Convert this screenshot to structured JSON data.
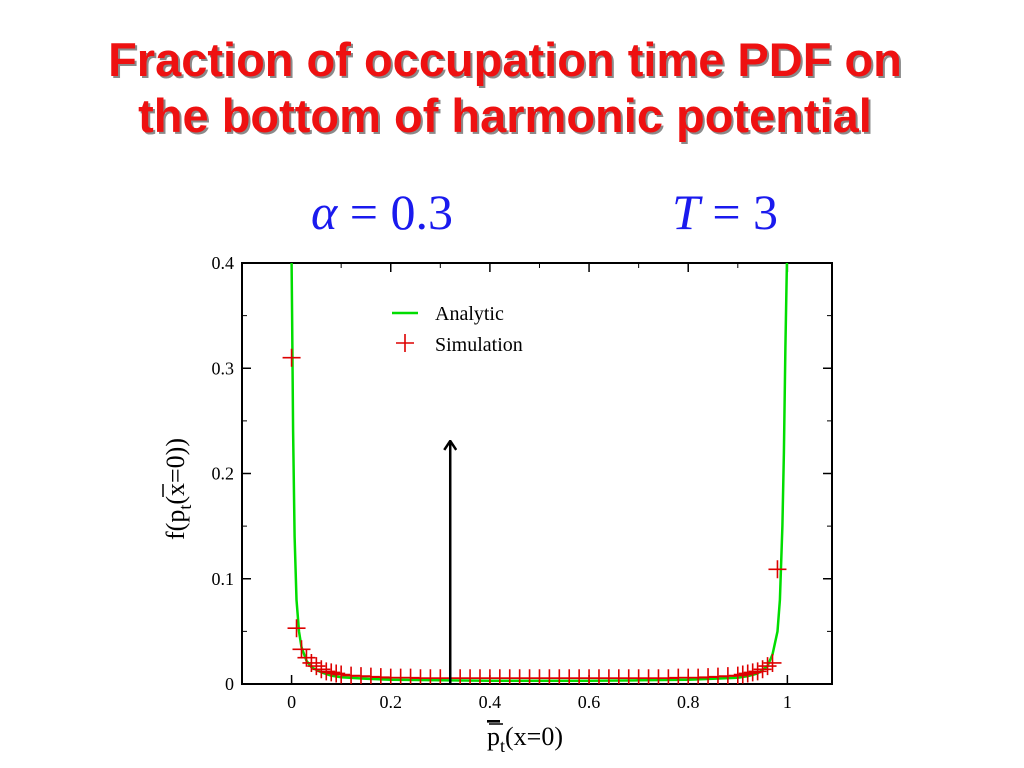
{
  "slide": {
    "title_lines": [
      "Fraction of occupation time PDF on",
      "the bottom of harmonic potential"
    ],
    "param_alpha": {
      "symbol": "α",
      "eq": " = ",
      "value": "0.3"
    },
    "param_T": {
      "symbol": "T",
      "eq": " = ",
      "value": "3"
    }
  },
  "chart_data": {
    "type": "line",
    "xlabel": "p̄t(x=0)",
    "ylabel": "f(p̄t(x=0))",
    "xlim": [
      -0.1,
      1.09
    ],
    "ylim": [
      0,
      0.4
    ],
    "x_ticks": [
      "0",
      "0.2",
      "0.4",
      "0.6",
      "0.8",
      "1"
    ],
    "y_ticks": [
      "0",
      "0.1",
      "0.2",
      "0.3",
      "0.4"
    ],
    "legend": {
      "placement": "top-center",
      "entries": [
        "Analytic",
        "Simulation"
      ]
    },
    "colors": {
      "analytic": "#00dd00",
      "simulation": "#dd0000",
      "arrow": "#000000"
    },
    "series": [
      {
        "name": "Analytic",
        "style": "line",
        "x": [
          0.0,
          0.001,
          0.003,
          0.006,
          0.01,
          0.015,
          0.02,
          0.03,
          0.04,
          0.06,
          0.08,
          0.1,
          0.15,
          0.2,
          0.3,
          0.4,
          0.5,
          0.6,
          0.7,
          0.8,
          0.85,
          0.9,
          0.92,
          0.94,
          0.96,
          0.97,
          0.98,
          0.985,
          0.99,
          0.993,
          0.996,
          0.999
        ],
        "y": [
          0.4,
          0.35,
          0.24,
          0.14,
          0.08,
          0.05,
          0.035,
          0.022,
          0.016,
          0.011,
          0.008,
          0.0065,
          0.005,
          0.004,
          0.0035,
          0.003,
          0.003,
          0.003,
          0.0035,
          0.004,
          0.005,
          0.006,
          0.0075,
          0.01,
          0.017,
          0.028,
          0.05,
          0.08,
          0.15,
          0.22,
          0.32,
          0.4
        ]
      },
      {
        "name": "Simulation",
        "style": "plus",
        "x": [
          0.0,
          0.01,
          0.02,
          0.03,
          0.04,
          0.05,
          0.06,
          0.07,
          0.08,
          0.09,
          0.1,
          0.12,
          0.14,
          0.16,
          0.18,
          0.2,
          0.22,
          0.24,
          0.26,
          0.28,
          0.3,
          0.32,
          0.34,
          0.36,
          0.38,
          0.4,
          0.42,
          0.44,
          0.46,
          0.48,
          0.5,
          0.52,
          0.54,
          0.56,
          0.58,
          0.6,
          0.62,
          0.64,
          0.66,
          0.68,
          0.7,
          0.72,
          0.74,
          0.76,
          0.78,
          0.8,
          0.82,
          0.84,
          0.86,
          0.88,
          0.9,
          0.91,
          0.92,
          0.93,
          0.94,
          0.95,
          0.96,
          0.97,
          0.98
        ],
        "y": [
          0.31,
          0.053,
          0.033,
          0.025,
          0.02,
          0.017,
          0.014,
          0.012,
          0.011,
          0.01,
          0.009,
          0.008,
          0.0075,
          0.007,
          0.0065,
          0.006,
          0.006,
          0.006,
          0.0055,
          0.0055,
          0.0055,
          0.0055,
          0.0055,
          0.0055,
          0.0055,
          0.0055,
          0.0055,
          0.0055,
          0.0055,
          0.0055,
          0.0055,
          0.0055,
          0.0055,
          0.0055,
          0.0055,
          0.0055,
          0.0055,
          0.0055,
          0.0055,
          0.0055,
          0.0055,
          0.0055,
          0.0055,
          0.0055,
          0.006,
          0.006,
          0.006,
          0.0065,
          0.007,
          0.0075,
          0.008,
          0.009,
          0.01,
          0.011,
          0.012,
          0.014,
          0.017,
          0.02,
          0.109
        ]
      }
    ],
    "annotations": [
      {
        "type": "arrow",
        "x": 0.32,
        "y_from": 0.0,
        "y_to": 0.23
      }
    ]
  }
}
